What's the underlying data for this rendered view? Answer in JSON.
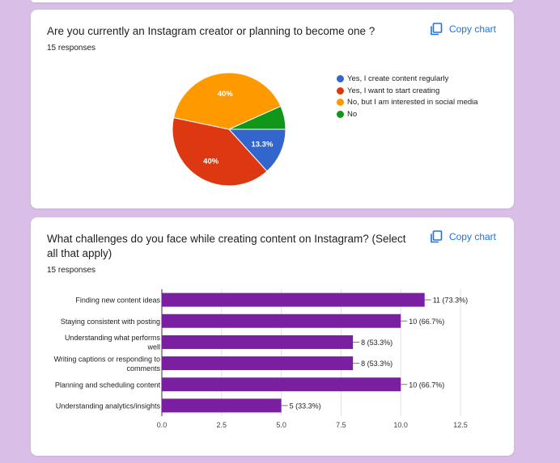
{
  "copy_chart_label": "Copy chart",
  "pie_question": {
    "title": "Are you currently an Instagram creator or planning to become one ?",
    "responses": "15 responses",
    "chart_data": {
      "type": "pie",
      "title": "",
      "slices": [
        {
          "name": "Yes, I create content regularly",
          "value": 13.3,
          "label": "13.3%",
          "color": "#3366cc"
        },
        {
          "name": "Yes, I want to start creating",
          "value": 40,
          "label": "40%",
          "color": "#dc3912"
        },
        {
          "name": "No, but I am interested in social media",
          "value": 40,
          "label": "40%",
          "color": "#ff9900"
        },
        {
          "name": "No",
          "value": 6.7,
          "label": "",
          "color": "#109618"
        }
      ],
      "legend": "right"
    }
  },
  "bar_question": {
    "title": "What challenges do you face while creating content on Instagram? (Select all that apply)",
    "responses": "15 responses",
    "chart_data": {
      "type": "bar",
      "orientation": "horizontal",
      "categories": [
        [
          "Finding new content ideas"
        ],
        [
          "Staying consistent with posting"
        ],
        [
          "Understanding what performs",
          "well"
        ],
        [
          "Writing captions or responding to",
          "comments"
        ],
        [
          "Planning and scheduling content"
        ],
        [
          "Understanding analytics/insights"
        ]
      ],
      "values": [
        11,
        10,
        8,
        8,
        10,
        5
      ],
      "value_labels": [
        "11 (73.3%)",
        "10 (66.7%)",
        "8 (53.3%)",
        "8 (53.3%)",
        "10 (66.7%)",
        "5 (33.3%)"
      ],
      "xlim": [
        0,
        12.5
      ],
      "xticks": [
        "0.0",
        "2.5",
        "5.0",
        "7.5",
        "10.0",
        "12.5"
      ],
      "xtick_values": [
        0,
        2.5,
        5,
        7.5,
        10,
        12.5
      ],
      "color": "#7b1fa2",
      "grid": true
    }
  }
}
